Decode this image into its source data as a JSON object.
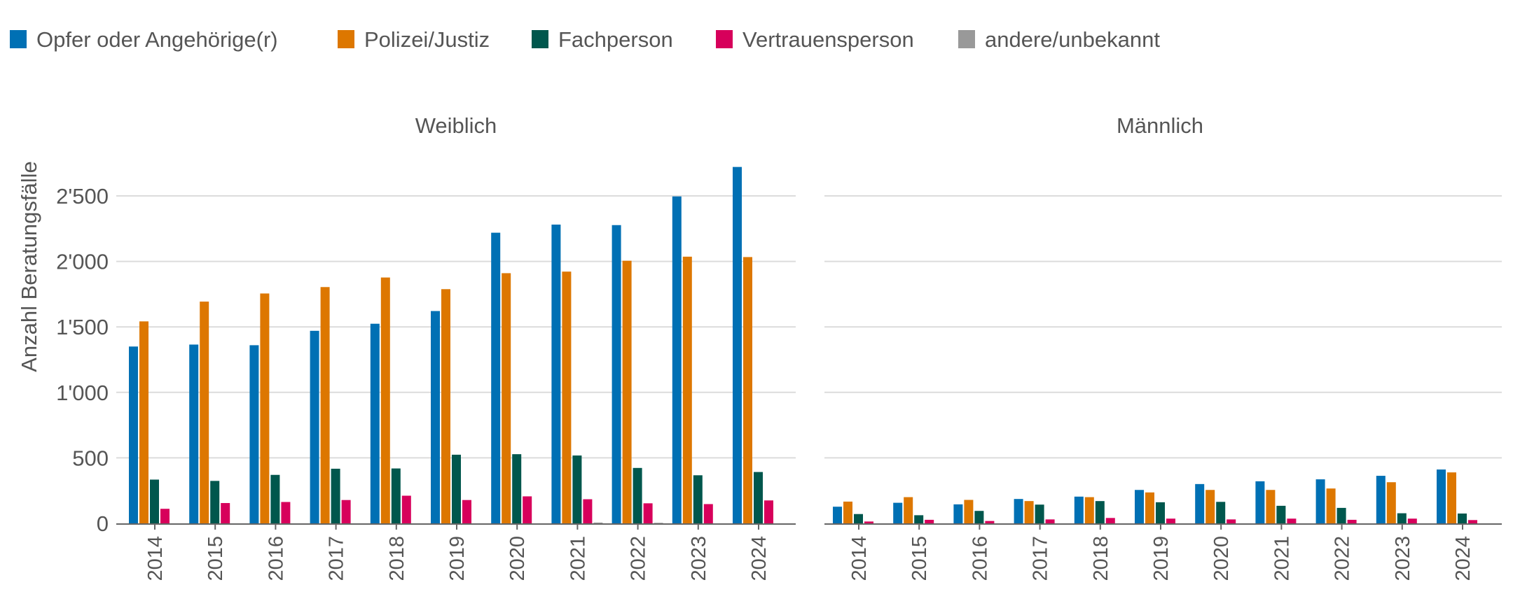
{
  "legend": {
    "items": [
      {
        "label": "Opfer oder Angehörige(r)",
        "color": "#0070b4"
      },
      {
        "label": "Polizei/Justiz",
        "color": "#dd7700"
      },
      {
        "label": "Fachperson",
        "color": "#00574d"
      },
      {
        "label": "Vertrauensperson",
        "color": "#d7005b"
      },
      {
        "label": "andere/unbekannt",
        "color": "#999999"
      }
    ]
  },
  "chart_data": [
    {
      "type": "bar",
      "title": "Weiblich",
      "ylabel": "Anzahl Beratungsfälle",
      "xlabel": "",
      "ylim": [
        0,
        2800
      ],
      "yticks": [
        "0",
        "500",
        "1'000",
        "1'500",
        "2'000",
        "2'500"
      ],
      "ytick_values": [
        0,
        500,
        1000,
        1500,
        2000,
        2500
      ],
      "grid": true,
      "legend": "top-left",
      "categories": [
        "2014",
        "2015",
        "2016",
        "2017",
        "2018",
        "2019",
        "2020",
        "2021",
        "2022",
        "2023",
        "2024"
      ],
      "series": [
        {
          "name": "Opfer oder Angehörige(r)",
          "values": [
            1350,
            1365,
            1360,
            1470,
            1524,
            1621,
            2219,
            2281,
            2277,
            2496,
            2721
          ]
        },
        {
          "name": "Polizei/Justiz",
          "values": [
            1542,
            1693,
            1755,
            1804,
            1877,
            1788,
            1910,
            1922,
            2005,
            2036,
            2033
          ]
        },
        {
          "name": "Fachperson",
          "values": [
            334,
            324,
            370,
            417,
            419,
            524,
            528,
            518,
            423,
            367,
            392
          ]
        },
        {
          "name": "Vertrauensperson",
          "values": [
            111,
            155,
            163,
            178,
            211,
            178,
            206,
            184,
            153,
            147,
            175
          ]
        },
        {
          "name": "andere/unbekannt",
          "values": [
            0,
            0,
            0,
            0,
            0,
            0,
            0,
            6,
            4,
            0,
            0
          ]
        }
      ]
    },
    {
      "type": "bar",
      "title": "Männlich",
      "ylim": [
        0,
        2800
      ],
      "grid": true,
      "categories": [
        "2014",
        "2015",
        "2016",
        "2017",
        "2018",
        "2019",
        "2020",
        "2021",
        "2022",
        "2023",
        "2024"
      ],
      "series": [
        {
          "name": "Opfer oder Angehörige(r)",
          "values": [
            127,
            157,
            145,
            186,
            204,
            255,
            300,
            321,
            336,
            363,
            411
          ]
        },
        {
          "name": "Polizei/Justiz",
          "values": [
            166,
            200,
            179,
            170,
            200,
            236,
            255,
            255,
            266,
            314,
            389
          ]
        },
        {
          "name": "Fachperson",
          "values": [
            71,
            62,
            95,
            143,
            170,
            161,
            164,
            134,
            118,
            77,
            75
          ]
        },
        {
          "name": "Vertrauensperson",
          "values": [
            14,
            27,
            18,
            30,
            41,
            36,
            30,
            36,
            27,
            36,
            25
          ]
        },
        {
          "name": "andere/unbekannt",
          "values": [
            0,
            0,
            0,
            0,
            0,
            0,
            0,
            0,
            0,
            0,
            0
          ]
        }
      ]
    }
  ]
}
